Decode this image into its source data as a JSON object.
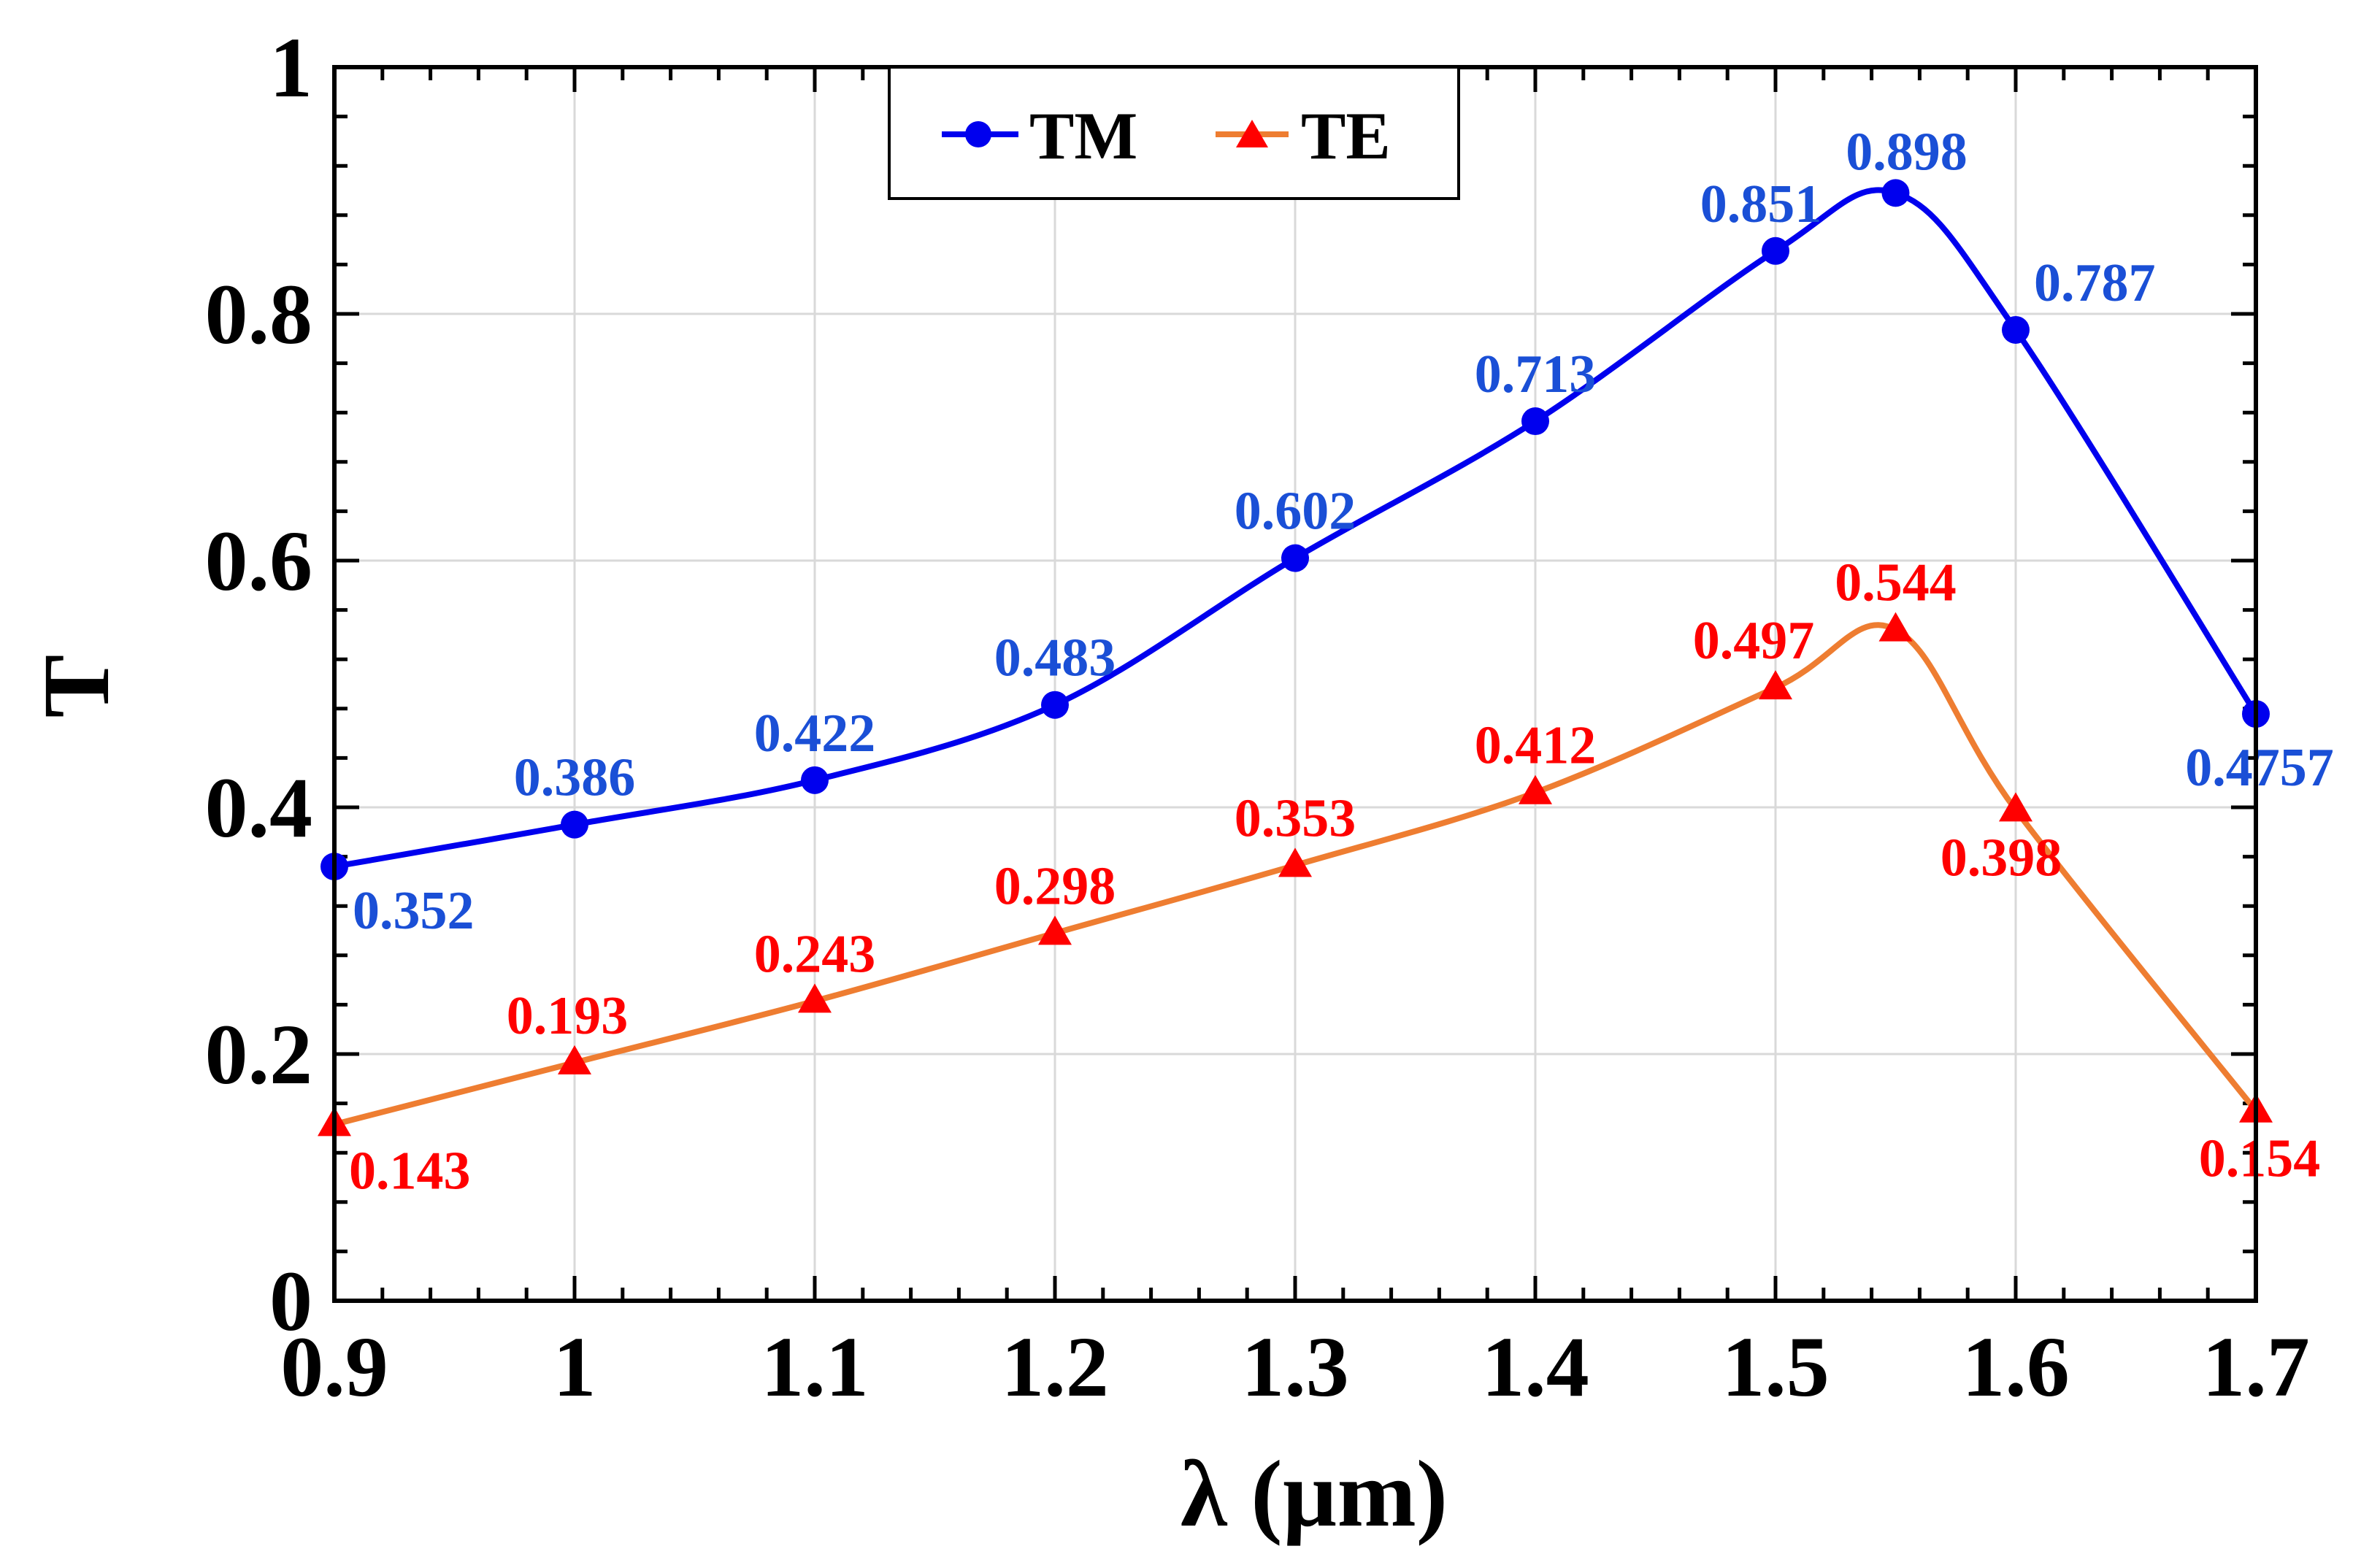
{
  "chart_data": {
    "type": "line",
    "title": "",
    "xlabel": "λ (µm)",
    "ylabel": "T",
    "xlim": [
      0.9,
      1.7
    ],
    "ylim": [
      0,
      1
    ],
    "x_ticks": [
      0.9,
      1.0,
      1.1,
      1.2,
      1.3,
      1.4,
      1.5,
      1.6,
      1.7
    ],
    "x_tick_labels": [
      "0.9",
      "1",
      "1.1",
      "1.2",
      "1.3",
      "1.4",
      "1.5",
      "1.6",
      "1.7"
    ],
    "y_ticks": [
      0,
      0.2,
      0.4,
      0.6,
      0.8,
      1.0
    ],
    "y_tick_labels": [
      "0",
      "0.2",
      "0.4",
      "0.6",
      "0.8",
      "1"
    ],
    "grid": true,
    "legend_position": "top-center",
    "series": [
      {
        "name": "TM",
        "color": "#0000ee",
        "marker": "circle",
        "x": [
          0.9,
          1.0,
          1.1,
          1.2,
          1.3,
          1.4,
          1.5,
          1.55,
          1.6,
          1.7
        ],
        "values": [
          0.352,
          0.386,
          0.422,
          0.483,
          0.602,
          0.713,
          0.851,
          0.898,
          0.787,
          0.4757
        ],
        "labels": [
          "0.352",
          "0.386",
          "0.422",
          "0.483",
          "0.602",
          "0.713",
          "0.851",
          "0.898",
          "0.787",
          "0.4757"
        ],
        "label_color": "#1a4fd6"
      },
      {
        "name": "TE",
        "color": "#ee7d31",
        "marker": "triangle",
        "marker_color": "#ff0000",
        "x": [
          0.9,
          1.0,
          1.1,
          1.2,
          1.3,
          1.4,
          1.5,
          1.55,
          1.6,
          1.7
        ],
        "values": [
          0.143,
          0.193,
          0.243,
          0.298,
          0.353,
          0.412,
          0.497,
          0.544,
          0.398,
          0.154
        ],
        "labels": [
          "0.143",
          "0.193",
          "0.243",
          "0.298",
          "0.353",
          "0.412",
          "0.497",
          "0.544",
          "0.398",
          "0.154"
        ],
        "label_color": "#ff0000"
      }
    ]
  }
}
